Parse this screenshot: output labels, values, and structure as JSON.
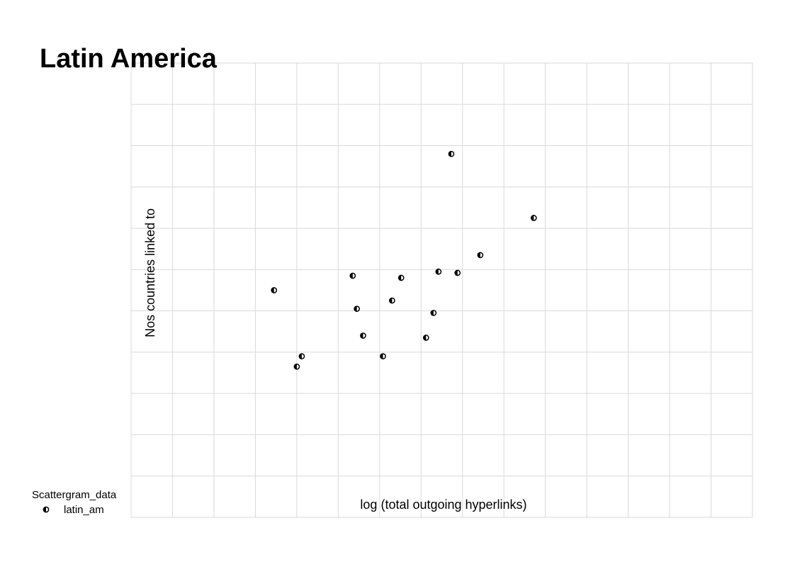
{
  "chart_data": {
    "type": "scatter",
    "title": "Latin America",
    "xlabel": "log (total outgoing hyperlinks)",
    "ylabel": "Nos countries linked to",
    "grid": true,
    "legend": {
      "title": "Scattergram_data",
      "placement": "bottom-left",
      "entries": [
        {
          "label": "latin_am",
          "marker": "half-filled-circle"
        }
      ]
    },
    "xlim": [
      0,
      15
    ],
    "ylim": [
      0,
      11
    ],
    "series": [
      {
        "name": "latin_am",
        "color": "#000000",
        "points": [
          {
            "x": 3.45,
            "y": 5.5
          },
          {
            "x": 4.0,
            "y": 3.65
          },
          {
            "x": 4.12,
            "y": 3.9
          },
          {
            "x": 5.35,
            "y": 5.85
          },
          {
            "x": 5.45,
            "y": 5.05
          },
          {
            "x": 5.6,
            "y": 4.4
          },
          {
            "x": 6.08,
            "y": 3.9
          },
          {
            "x": 6.3,
            "y": 5.25
          },
          {
            "x": 6.52,
            "y": 5.8
          },
          {
            "x": 7.12,
            "y": 4.35
          },
          {
            "x": 7.3,
            "y": 4.95
          },
          {
            "x": 7.42,
            "y": 5.95
          },
          {
            "x": 7.73,
            "y": 8.8
          },
          {
            "x": 7.88,
            "y": 5.92
          },
          {
            "x": 8.43,
            "y": 6.35
          },
          {
            "x": 9.72,
            "y": 7.25
          }
        ]
      }
    ]
  }
}
